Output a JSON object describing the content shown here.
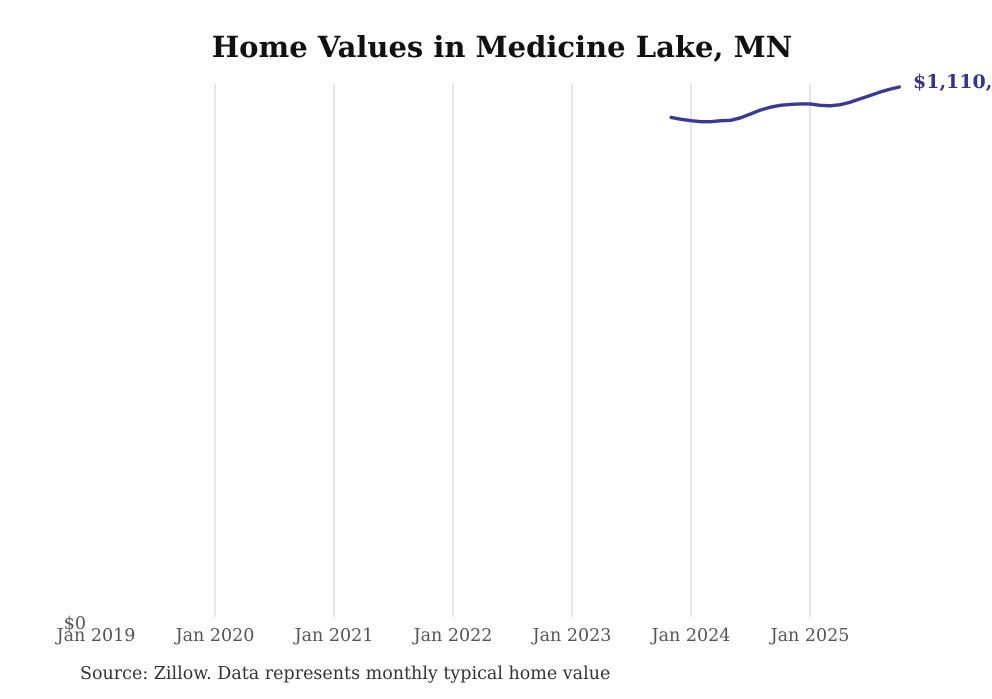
{
  "chart_data": {
    "type": "line",
    "title": "Home Values in Medicine Lake, MN",
    "source": "Source: Zillow. Data represents monthly typical home value",
    "end_label": "$1,110,",
    "xlabel": "",
    "ylabel": "",
    "legend": "none",
    "grid": "vertical-only",
    "ylim": [
      0,
      1117000
    ],
    "y_ticks": [
      {
        "label": "$0",
        "value": 0
      }
    ],
    "x_ticks": [
      {
        "label": "Jan 2019",
        "year": 2019,
        "gridline": false
      },
      {
        "label": "Jan 2020",
        "year": 2020,
        "gridline": true
      },
      {
        "label": "Jan 2021",
        "year": 2021,
        "gridline": true
      },
      {
        "label": "Jan 2022",
        "year": 2022,
        "gridline": true
      },
      {
        "label": "Jan 2023",
        "year": 2023,
        "gridline": true
      },
      {
        "label": "Jan 2024",
        "year": 2024,
        "gridline": true
      },
      {
        "label": "Jan 2025",
        "year": 2025,
        "gridline": true
      }
    ],
    "series": [
      {
        "name": "Monthly typical home value",
        "color": "#3a3a96",
        "points": [
          {
            "date": "2023-11",
            "value": 1047000
          },
          {
            "date": "2023-12",
            "value": 1043000
          },
          {
            "date": "2024-01",
            "value": 1040000
          },
          {
            "date": "2024-02",
            "value": 1038000
          },
          {
            "date": "2024-03",
            "value": 1038000
          },
          {
            "date": "2024-04",
            "value": 1040000
          },
          {
            "date": "2024-05",
            "value": 1041000
          },
          {
            "date": "2024-06",
            "value": 1046000
          },
          {
            "date": "2024-07",
            "value": 1054000
          },
          {
            "date": "2024-08",
            "value": 1062000
          },
          {
            "date": "2024-09",
            "value": 1068000
          },
          {
            "date": "2024-10",
            "value": 1072000
          },
          {
            "date": "2024-11",
            "value": 1074000
          },
          {
            "date": "2024-12",
            "value": 1075000
          },
          {
            "date": "2025-01",
            "value": 1075000
          },
          {
            "date": "2025-02",
            "value": 1072000
          },
          {
            "date": "2025-03",
            "value": 1071000
          },
          {
            "date": "2025-04",
            "value": 1073000
          },
          {
            "date": "2025-05",
            "value": 1078000
          },
          {
            "date": "2025-06",
            "value": 1085000
          },
          {
            "date": "2025-07",
            "value": 1092000
          },
          {
            "date": "2025-08",
            "value": 1099000
          },
          {
            "date": "2025-09",
            "value": 1105000
          },
          {
            "date": "2025-10",
            "value": 1110000
          }
        ]
      }
    ],
    "colors": {
      "line": "#3a3a96",
      "end_label": "#34348f",
      "gridline": "#cccccc",
      "tick_text": "#555555",
      "title_text": "#111111",
      "source_text": "#333333",
      "background": "#ffffff"
    }
  }
}
